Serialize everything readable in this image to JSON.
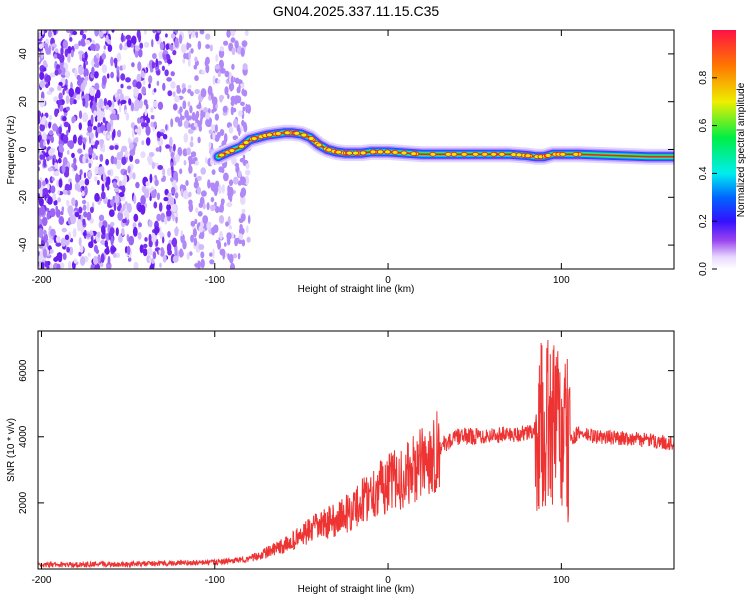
{
  "chart_data": [
    {
      "type": "heatmap",
      "title": "GN04.2025.337.11.15.C35",
      "xlabel": "Height of straight line (km)",
      "ylabel": "Frequency (Hz)",
      "xlim": [
        -202,
        165
      ],
      "ylim": [
        -50,
        50
      ],
      "x_ticks": [
        -200,
        -100,
        0,
        100
      ],
      "y_ticks": [
        -40,
        -20,
        0,
        20,
        40
      ],
      "noise_region_x": [
        -202,
        -80
      ],
      "track": {
        "x": [
          -98,
          -92,
          -85,
          -80,
          -75,
          -70,
          -65,
          -60,
          -55,
          -50,
          -45,
          -40,
          -35,
          -30,
          -25,
          -20,
          -15,
          -10,
          -5,
          0,
          10,
          20,
          40,
          60,
          70,
          80,
          85,
          90,
          95,
          100,
          110,
          130,
          150,
          165
        ],
        "freq": [
          -3,
          -1,
          1,
          4,
          5,
          6,
          6.5,
          7,
          7,
          6.5,
          5,
          2,
          0,
          -1,
          -1.5,
          -1.5,
          -1.5,
          -1,
          -1,
          -1,
          -1.5,
          -2,
          -2,
          -2,
          -2,
          -2.5,
          -3,
          -3,
          -2,
          -2,
          -2,
          -2.5,
          -3,
          -3
        ]
      },
      "colorbar": {
        "label": "Normalized spectral amplitude",
        "range": [
          0.0,
          1.0
        ],
        "ticks": [
          0.0,
          0.2,
          0.4,
          0.6,
          0.8
        ]
      }
    },
    {
      "type": "line",
      "xlabel": "Height of straight line (km)",
      "ylabel": "SNR (10 * v/v)",
      "xlim": [
        -202,
        165
      ],
      "ylim": [
        0,
        7200
      ],
      "x_ticks": [
        -200,
        -100,
        0,
        100
      ],
      "y_ticks": [
        2000,
        4000,
        6000
      ],
      "color": "#ee3333",
      "series": [
        {
          "name": "SNR",
          "x": [
            -202,
            -150,
            -100,
            -80,
            -70,
            -60,
            -50,
            -40,
            -30,
            -20,
            -10,
            0,
            10,
            20,
            30,
            40,
            60,
            80,
            85,
            90,
            95,
            100,
            102,
            105,
            110,
            120,
            140,
            165
          ],
          "y": [
            120,
            150,
            200,
            300,
            500,
            700,
            1000,
            1300,
            1500,
            1800,
            2300,
            2600,
            2800,
            3200,
            3700,
            4000,
            4050,
            4100,
            4200,
            4300,
            4500,
            4000,
            3700,
            3900,
            4100,
            4000,
            3950,
            3800
          ]
        }
      ]
    }
  ]
}
